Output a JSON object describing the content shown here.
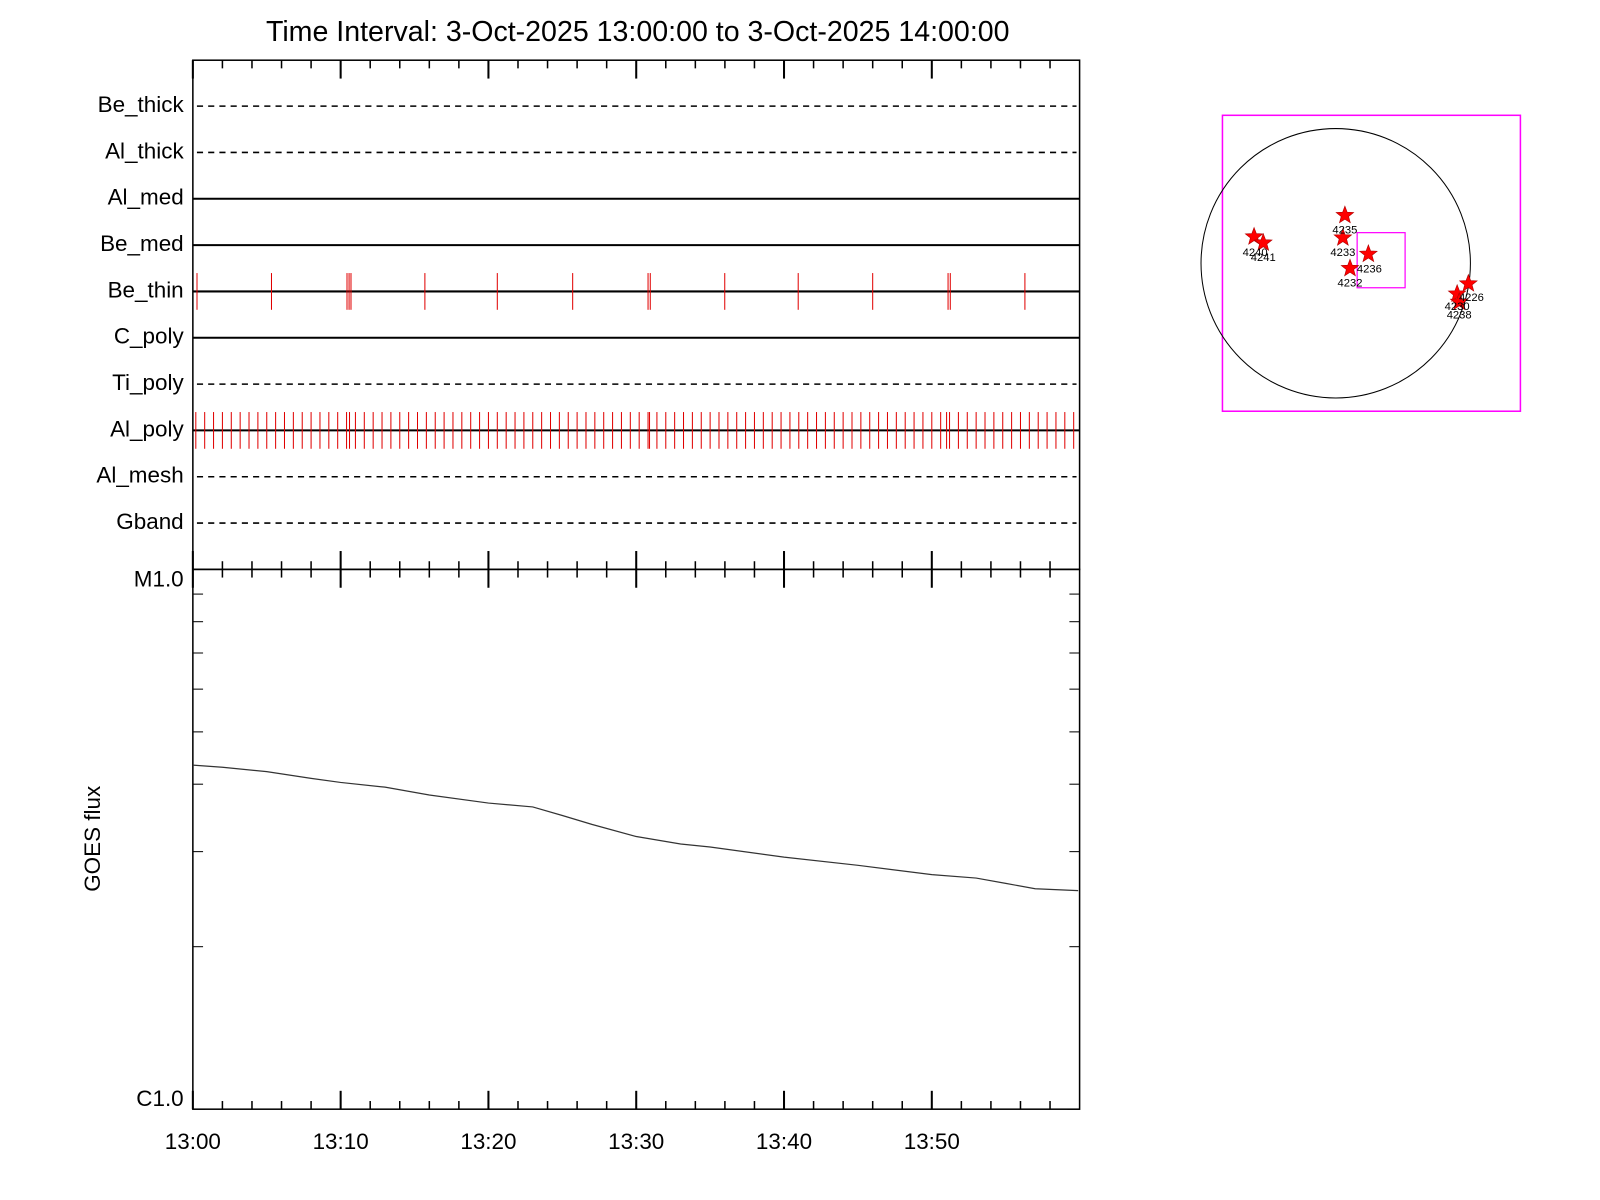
{
  "title": "Time Interval:  3-Oct-2025 13:00:00 to  3-Oct-2025 14:00:00",
  "chart_data": [
    {
      "type": "events",
      "color": "#e00000",
      "filters": [
        {
          "name": "Be_thick",
          "line_style": "dashed",
          "events": []
        },
        {
          "name": "Al_thick",
          "line_style": "dashed",
          "events": []
        },
        {
          "name": "Al_med",
          "line_style": "solid",
          "events": []
        },
        {
          "name": "Be_med",
          "line_style": "solid",
          "events": []
        },
        {
          "name": "Be_thin",
          "line_style": "solid",
          "events": [
            0.28,
            5.32,
            10.43,
            10.57,
            10.7,
            15.7,
            20.6,
            25.7,
            30.8,
            30.95,
            35.99,
            40.96,
            46.0,
            51.1,
            51.25,
            56.3
          ]
        },
        {
          "name": "C_poly",
          "line_style": "solid",
          "events": []
        },
        {
          "name": "Ti_poly",
          "line_style": "dashed",
          "events": []
        },
        {
          "name": "Al_poly",
          "line_style": "solid",
          "events": [
            0.2,
            0.8,
            1.4,
            2,
            2.6,
            3.2,
            3.8,
            4.4,
            5,
            5.6,
            6.2,
            6.8,
            7.4,
            8,
            8.6,
            9.2,
            9.8,
            10.4,
            10.6,
            11,
            11.6,
            12.2,
            12.8,
            13.4,
            14,
            14.6,
            15.2,
            15.8,
            16.4,
            17,
            17.6,
            18.2,
            18.8,
            19.4,
            20,
            20.6,
            21.2,
            21.8,
            22.4,
            23,
            23.6,
            24.2,
            24.8,
            25.4,
            26,
            26.6,
            27.2,
            27.8,
            28.4,
            29,
            29.6,
            30.2,
            30.8,
            30.9,
            31.4,
            32,
            32.6,
            33.2,
            33.8,
            34.4,
            35,
            35.6,
            36.2,
            36.8,
            37.4,
            38,
            38.6,
            39.2,
            39.8,
            40.4,
            41,
            41.6,
            42.2,
            42.8,
            43.4,
            44,
            44.6,
            45.2,
            45.8,
            46.4,
            47,
            47.6,
            48.2,
            48.8,
            49.4,
            50,
            50.6,
            51,
            51.2,
            51.8,
            52.4,
            53,
            53.6,
            54.2,
            54.8,
            55.4,
            56,
            56.6,
            57.2,
            57.8,
            58.4,
            59,
            59.6
          ]
        },
        {
          "name": "Al_mesh",
          "line_style": "dashed",
          "events": []
        },
        {
          "name": "Gband",
          "line_style": "dashed",
          "events": []
        }
      ]
    },
    {
      "type": "line",
      "log_y": true,
      "ylabel": "GOES flux",
      "color": "#333333",
      "xlim": [
        0,
        60
      ],
      "xticks": [
        {
          "value": 0,
          "label": "13:00"
        },
        {
          "value": 10,
          "label": "13:10"
        },
        {
          "value": 20,
          "label": "13:20"
        },
        {
          "value": 30,
          "label": "13:30"
        },
        {
          "value": 40,
          "label": "13:40"
        },
        {
          "value": 50,
          "label": "13:50"
        }
      ],
      "minor_xticks": [
        2,
        4,
        6,
        8,
        12,
        14,
        16,
        18,
        22,
        24,
        26,
        28,
        32,
        34,
        36,
        38,
        42,
        44,
        46,
        48,
        52,
        54,
        56,
        58
      ],
      "ylim": [
        1e-06,
        1e-05
      ],
      "yticks": [
        {
          "value": 1e-05,
          "label": "M1.0"
        },
        {
          "value": 1e-06,
          "label": "C1.0"
        }
      ],
      "minor_yticks": [
        2e-06,
        3e-06,
        4e-06,
        5e-06,
        6e-06,
        7e-06,
        8e-06,
        9e-06
      ],
      "x": [
        0,
        2,
        5,
        8,
        10,
        13,
        16,
        20,
        23,
        25,
        27,
        30,
        33,
        35,
        40,
        45,
        50,
        53,
        55,
        57,
        59.9
      ],
      "values": [
        4.34e-06,
        4.3e-06,
        4.22e-06,
        4.1e-06,
        4.03e-06,
        3.95e-06,
        3.82e-06,
        3.69e-06,
        3.63e-06,
        3.5e-06,
        3.37e-06,
        3.2e-06,
        3.1e-06,
        3.06e-06,
        2.93e-06,
        2.83e-06,
        2.72e-06,
        2.68e-06,
        2.62e-06,
        2.56e-06,
        2.54e-06
      ]
    }
  ],
  "sun_map": {
    "regions": [
      "4240",
      "4241",
      "4235",
      "4233",
      "4236",
      "4232",
      "4226",
      "4230",
      "4238"
    ]
  }
}
